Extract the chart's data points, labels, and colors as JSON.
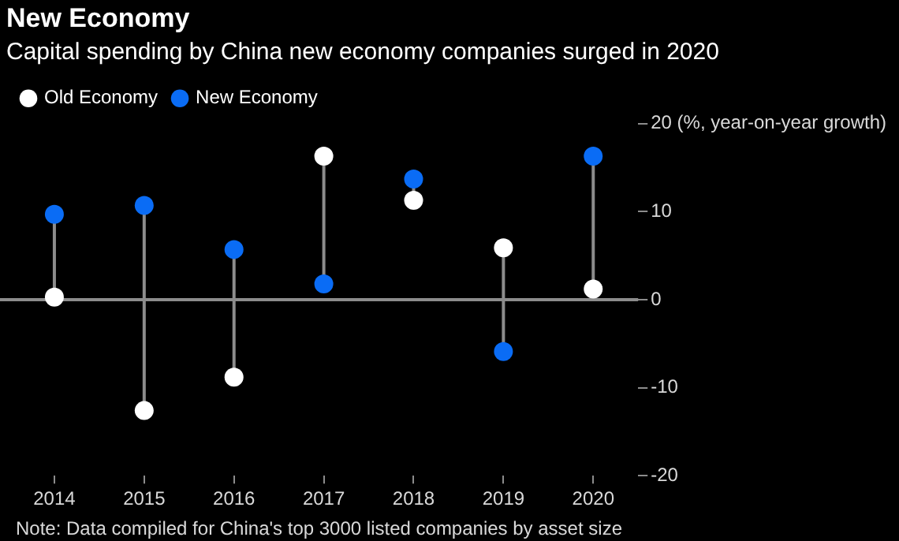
{
  "chart_data": {
    "type": "scatter",
    "title": "New Economy",
    "subtitle": "Capital spending by China new economy companies surged in 2020",
    "categories": [
      "2014",
      "2015",
      "2016",
      "2017",
      "2018",
      "2019",
      "2020"
    ],
    "series": [
      {
        "name": "Old Economy",
        "color": "#ffffff",
        "values": [
          0.3,
          -12.6,
          -8.8,
          16.3,
          11.3,
          5.9,
          1.2
        ]
      },
      {
        "name": "New Economy",
        "color": "#0a6cf5",
        "values": [
          9.7,
          10.7,
          5.7,
          1.8,
          13.7,
          -5.9,
          16.3
        ]
      }
    ],
    "ylim": [
      -20,
      20
    ],
    "yticks": [
      -20,
      -10,
      0,
      10,
      {
        "value": 20,
        "label": "20 (%, year-on-year growth)"
      }
    ],
    "ref_lines": [
      {
        "axis": "y",
        "value": 0,
        "color": "#8c8c8c"
      }
    ],
    "grid": false,
    "legend": "top left",
    "marker": "circle",
    "annotations": [
      "Note: Data compiled for China's top 3000 listed companies by asset size"
    ]
  }
}
